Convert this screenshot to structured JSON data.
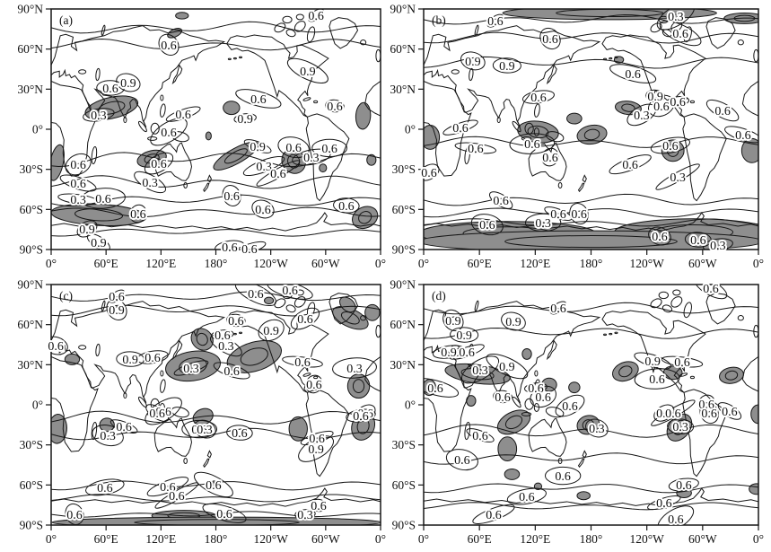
{
  "figure": {
    "background": "#ffffff",
    "line_color": "#161616",
    "shade_color": "#8e8e8e",
    "contour_levels": [
      "0.3",
      "0.6",
      "0.9"
    ]
  },
  "axes": {
    "lat_ticks": [
      "90°N",
      "60°N",
      "30°N",
      "0°",
      "30°S",
      "60°S",
      "90°S"
    ],
    "lon_ticks": [
      "0°",
      "60°E",
      "120°E",
      "180°",
      "120°W",
      "60°W",
      "0°"
    ]
  },
  "panels": [
    {
      "id": "a",
      "letter": "(a)",
      "labels": [
        [
          "0.6",
          80.4,
          2.6
        ],
        [
          "0.6",
          35.7,
          14.9
        ],
        [
          "0.9",
          23.4,
          30.6
        ],
        [
          "0.6",
          18.0,
          32.8
        ],
        [
          "0.3",
          14.4,
          44.0
        ],
        [
          "0.6",
          40.1,
          43.7
        ],
        [
          "0.6",
          35.7,
          51.1
        ],
        [
          "0.9",
          77.9,
          25.7
        ],
        [
          "0.6",
          62.9,
          37.3
        ],
        [
          "0.6",
          86.1,
          40.3
        ],
        [
          "0.9",
          58.9,
          45.5
        ],
        [
          "0.6",
          8.2,
          64.6
        ],
        [
          "0.6",
          32.7,
          64.2
        ],
        [
          "0.3",
          30.0,
          72.0
        ],
        [
          "0.6",
          8.2,
          72.4
        ],
        [
          "0.3",
          8.2,
          79.1
        ],
        [
          "0.6",
          15.8,
          78.7
        ],
        [
          "0.6",
          26.4,
          85.1
        ],
        [
          "0.9",
          10.9,
          91.4
        ],
        [
          "0.9",
          14.4,
          97.0
        ],
        [
          "0.9",
          62.7,
          57.1
        ],
        [
          "0.6",
          73.6,
          57.5
        ],
        [
          "0.6",
          84.5,
          57.8
        ],
        [
          "0.3",
          79.0,
          61.6
        ],
        [
          "0.3",
          64.6,
          65.3
        ],
        [
          "0.6",
          68.9,
          68.3
        ],
        [
          "0.6",
          54.8,
          77.6
        ],
        [
          "0.6",
          64.3,
          83.2
        ],
        [
          "0.6",
          89.6,
          81.7
        ],
        [
          "0.6",
          54.2,
          98.9
        ],
        [
          "0.6",
          60.2,
          99.6
        ]
      ],
      "shaded": [
        [
          66,
          74,
          29,
          8,
          -8
        ],
        [
          135,
          18,
          8,
          3,
          -15
        ],
        [
          197,
          74,
          9,
          5,
          0
        ],
        [
          110,
          112,
          16,
          6,
          -8
        ],
        [
          6,
          115,
          7,
          14,
          20
        ],
        [
          52,
          154,
          52,
          8,
          2
        ],
        [
          202,
          110,
          26,
          6,
          -20
        ],
        [
          265,
          114,
          13,
          9,
          8
        ],
        [
          343,
          156,
          14,
          8,
          -10
        ],
        [
          341,
          80,
          8,
          10,
          10
        ],
        [
          315,
          72,
          4,
          3,
          0
        ],
        [
          143,
          5,
          7,
          2.5,
          0
        ],
        [
          172,
          95,
          3,
          3,
          0
        ],
        [
          350,
          113,
          5,
          4,
          0
        ],
        [
          297,
          119,
          4,
          3,
          0
        ]
      ],
      "wavy": [
        [
          14,
          3,
          0
        ],
        [
          27,
          3,
          2
        ],
        [
          112,
          4,
          1
        ],
        [
          130,
          3.5,
          2
        ],
        [
          143,
          3,
          0.5
        ],
        [
          152,
          2.5,
          3
        ],
        [
          167,
          2,
          1
        ]
      ]
    },
    {
      "id": "b",
      "letter": "(b)",
      "labels": [
        [
          "0.6",
          21.4,
          4.9
        ],
        [
          "0.6",
          37.8,
          12.3
        ],
        [
          "0.9",
          14.7,
          21.6
        ],
        [
          "0.9",
          24.9,
          23.5
        ],
        [
          "0.6",
          34.3,
          36.6
        ],
        [
          "0.6",
          11.0,
          49.3
        ],
        [
          "0.3",
          75.3,
          3.0
        ],
        [
          "0.6",
          76.7,
          10.1
        ],
        [
          "0.6",
          62.5,
          26.9
        ],
        [
          "0.9",
          69.2,
          36.2
        ],
        [
          "0.6",
          75.9,
          38.4
        ],
        [
          "0.6",
          71.0,
          40.3
        ],
        [
          "0.3",
          65.1,
          44.0
        ],
        [
          "0.6",
          89.3,
          42.2
        ],
        [
          "0.6",
          95.4,
          52.2
        ],
        [
          "0.6",
          15.5,
          57.8
        ],
        [
          "0.6",
          32.4,
          56.0
        ],
        [
          "0.6",
          37.8,
          61.6
        ],
        [
          "0.6",
          1.6,
          67.9
        ],
        [
          "0.6",
          23.1,
          79.5
        ],
        [
          "0.6",
          40.2,
          85.1
        ],
        [
          "0.6",
          19.0,
          89.6
        ],
        [
          "0.3",
          35.7,
          88.8
        ],
        [
          "0.6",
          73.7,
          56.7
        ],
        [
          "0.6",
          61.7,
          64.6
        ],
        [
          "0.3",
          75.9,
          69.8
        ],
        [
          "0.6",
          46.4,
          85.1
        ],
        [
          "0.6",
          70.5,
          94.4
        ],
        [
          "0.6",
          82.0,
          95.9
        ],
        [
          "0.3",
          87.9,
          98.1
        ]
      ],
      "shaded": [
        [
          200,
          3,
          115,
          5,
          0
        ],
        [
          345,
          7,
          22,
          4,
          0
        ],
        [
          7,
          96,
          10,
          9,
          0
        ],
        [
          123,
          92,
          22,
          8,
          4
        ],
        [
          162,
          82,
          8,
          4,
          0
        ],
        [
          181,
          94,
          16,
          7,
          -5
        ],
        [
          220,
          74,
          14,
          5,
          4
        ],
        [
          210,
          38,
          5,
          2.5,
          0
        ],
        [
          268,
          106,
          12,
          8,
          0
        ],
        [
          353,
          106,
          11,
          9,
          0
        ],
        [
          90,
          168,
          95,
          9,
          0
        ],
        [
          290,
          167,
          85,
          10,
          0
        ],
        [
          180,
          174,
          185,
          8,
          0
        ]
      ],
      "wavy": [
        [
          8,
          2.5,
          0
        ],
        [
          21,
          3,
          1
        ],
        [
          40,
          3,
          1.5
        ],
        [
          100,
          3,
          2
        ],
        [
          143,
          3,
          0
        ],
        [
          152,
          2.5,
          1
        ],
        [
          160,
          2,
          2
        ]
      ]
    },
    {
      "id": "c",
      "letter": "(c)",
      "labels": [
        [
          "0.6",
          19.9,
          4.9
        ],
        [
          "0.9",
          19.9,
          10.4
        ],
        [
          "0.6",
          1.4,
          25.4
        ],
        [
          "0.9",
          24.0,
          31.0
        ],
        [
          "0.6",
          30.8,
          30.2
        ],
        [
          "0.3",
          42.5,
          34.7
        ],
        [
          "0.6",
          34.1,
          52.6
        ],
        [
          "0.6",
          62.1,
          3.7
        ],
        [
          "0.6",
          72.5,
          2.2
        ],
        [
          "0.6",
          56.1,
          14.9
        ],
        [
          "0.6",
          52.0,
          20.9
        ],
        [
          "0.9",
          66.8,
          19.0
        ],
        [
          "0.6",
          77.1,
          14.2
        ],
        [
          "0.3",
          53.1,
          25.4
        ],
        [
          "0.6",
          54.8,
          35.8
        ],
        [
          "0.6",
          76.3,
          32.1
        ],
        [
          "0.3",
          92.1,
          34.7
        ],
        [
          "0.6",
          79.8,
          41.4
        ],
        [
          "0.6",
          95.4,
          53.4
        ],
        [
          "0.6",
          32.2,
          53.4
        ],
        [
          "0.6",
          22.1,
          59.0
        ],
        [
          "0.3",
          17.2,
          62.7
        ],
        [
          "0.6",
          45.0,
          60.1
        ],
        [
          "0.6",
          16.3,
          84.3
        ],
        [
          "0.6",
          35.4,
          84.0
        ],
        [
          "0.6",
          38.1,
          87.7
        ],
        [
          "0.6",
          7.1,
          95.5
        ],
        [
          "0.3",
          46.6,
          60.1
        ],
        [
          "0.6",
          57.2,
          61.6
        ],
        [
          "0.6",
          94.0,
          54.5
        ],
        [
          "0.6",
          80.7,
          63.8
        ],
        [
          "0.9",
          80.4,
          68.3
        ],
        [
          "0.6",
          49.3,
          83.2
        ],
        [
          "0.6",
          52.6,
          95.1
        ],
        [
          "0.6",
          81.2,
          91.8
        ],
        [
          "0.3",
          77.1,
          95.5
        ]
      ],
      "shaded": [
        [
          155,
          61,
          30,
          11,
          -5
        ],
        [
          165,
          41,
          12,
          8,
          10
        ],
        [
          222,
          54,
          30,
          11,
          -10
        ],
        [
          327,
          25,
          20,
          7,
          15
        ],
        [
          336,
          76,
          12,
          9,
          0
        ],
        [
          23,
          56,
          8,
          4,
          0
        ],
        [
          7,
          108,
          10,
          11,
          20
        ],
        [
          61,
          105,
          8,
          5,
          0
        ],
        [
          270,
          108,
          10,
          9,
          0
        ],
        [
          341,
          106,
          13,
          10,
          -20
        ],
        [
          166,
          99,
          11,
          6,
          -10
        ],
        [
          324,
          15,
          9,
          5,
          20
        ],
        [
          351,
          21,
          8,
          6,
          0
        ],
        [
          238,
          12,
          5,
          2.5,
          0
        ],
        [
          145,
          173,
          35,
          4,
          0
        ],
        [
          181,
          178,
          180,
          4,
          0
        ],
        [
          178,
          149,
          3,
          2,
          0
        ]
      ],
      "wavy": [
        [
          9,
          2.5,
          0
        ],
        [
          19,
          3,
          1
        ],
        [
          100,
          3.5,
          2
        ],
        [
          112,
          3,
          0
        ],
        [
          150,
          2.5,
          1
        ],
        [
          160,
          2,
          2
        ],
        [
          172,
          1.5,
          0
        ]
      ]
    },
    {
      "id": "d",
      "letter": "(d)",
      "labels": [
        [
          "0.6",
          40.2,
          9.7
        ],
        [
          "0.9",
          8.8,
          14.9
        ],
        [
          "0.9",
          26.8,
          15.3
        ],
        [
          "0.9",
          12.1,
          20.9
        ],
        [
          "0.9",
          7.5,
          28.0
        ],
        [
          "0.6",
          12.9,
          28.0
        ],
        [
          "0.3",
          16.9,
          35.4
        ],
        [
          "0.9",
          24.9,
          34.0
        ],
        [
          "0.6",
          3.5,
          42.9
        ],
        [
          "0.6",
          23.6,
          46.6
        ],
        [
          "0.6",
          33.5,
          42.9
        ],
        [
          "0.6",
          35.7,
          46.6
        ],
        [
          "0.6",
          43.7,
          50.4
        ],
        [
          "0.6",
          85.8,
          1.5
        ],
        [
          "0.9",
          68.4,
          31.7
        ],
        [
          "0.6",
          77.2,
          32.1
        ],
        [
          "0.6",
          69.7,
          39.2
        ],
        [
          "0.6",
          84.5,
          49.6
        ],
        [
          "0.6",
          71.8,
          53.4
        ],
        [
          "0.6",
          91.4,
          52.6
        ],
        [
          "0.6",
          16.9,
          62.7
        ],
        [
          "0.6",
          11.5,
          72.8
        ],
        [
          "0.6",
          41.6,
          79.5
        ],
        [
          "0.6",
          30.8,
          88.1
        ],
        [
          "0.6",
          20.9,
          95.5
        ],
        [
          "0.6",
          74.5,
          53.4
        ],
        [
          "0.6",
          85.3,
          53.4
        ],
        [
          "0.3",
          51.7,
          59.7
        ],
        [
          "0.3",
          76.7,
          59.0
        ],
        [
          "0.6",
          77.7,
          83.2
        ],
        [
          "0.6",
          71.8,
          90.7
        ],
        [
          "0.6",
          75.3,
          97.4
        ]
      ],
      "shaded": [
        [
          58,
          67,
          35,
          7,
          5
        ],
        [
          6,
          77,
          7,
          6,
          0
        ],
        [
          111,
          52,
          5,
          4,
          0
        ],
        [
          135,
          75,
          8,
          5,
          0
        ],
        [
          162,
          77,
          6,
          4,
          0
        ],
        [
          217,
          65,
          14,
          7,
          -10
        ],
        [
          268,
          66,
          10,
          5,
          0
        ],
        [
          331,
          68,
          13,
          6,
          -5
        ],
        [
          177,
          105,
          12,
          7,
          -5
        ],
        [
          275,
          107,
          14,
          9,
          -25
        ],
        [
          97,
          103,
          18,
          8,
          -15
        ],
        [
          90,
          123,
          10,
          9,
          0
        ],
        [
          360,
          97,
          8,
          7,
          0
        ],
        [
          95,
          142,
          8,
          4,
          0
        ],
        [
          123,
          151,
          4,
          2.5,
          0
        ],
        [
          172,
          158,
          7,
          3,
          0
        ],
        [
          280,
          156,
          8,
          3.5,
          0
        ],
        [
          358,
          153,
          8,
          4,
          0
        ],
        [
          51,
          87,
          5,
          4,
          0
        ]
      ],
      "wavy": [
        [
          18,
          3,
          0
        ],
        [
          36,
          3,
          1
        ],
        [
          110,
          3.5,
          2
        ],
        [
          130,
          3,
          0.5
        ],
        [
          152,
          2.5,
          1
        ],
        [
          166,
          2,
          2
        ]
      ]
    }
  ]
}
